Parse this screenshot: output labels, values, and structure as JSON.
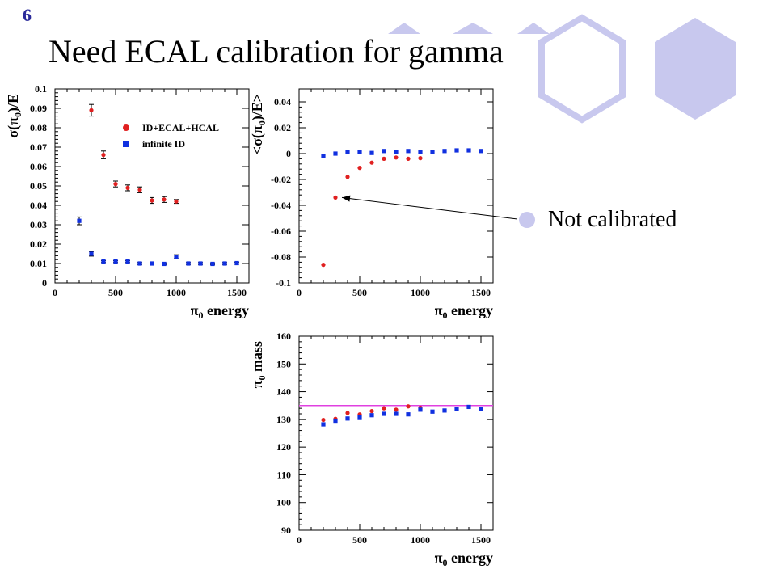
{
  "slide": {
    "number": "6",
    "title": "Need ECAL calibration for gamma",
    "callout": "Not calibrated"
  },
  "colors": {
    "red": "#e02020",
    "blue": "#1030e0",
    "magenta": "#e040e0",
    "deco": "#c8c8ee"
  },
  "chart_data": [
    {
      "type": "scatter",
      "xlabel": "π0 energy",
      "ylabel": "σ(π0)/E",
      "xlim": [
        0,
        1600
      ],
      "ylim": [
        0,
        0.1
      ],
      "xticks": [
        0,
        500,
        1000,
        1500
      ],
      "yticks": [
        0,
        0.01,
        0.02,
        0.03,
        0.04,
        0.05,
        0.06,
        0.07,
        0.08,
        0.09,
        0.1
      ],
      "ytick_labels": [
        "0",
        "0.01",
        "0.02",
        "0.03",
        "0.04",
        "0.05",
        "0.06",
        "0.07",
        "0.08",
        "0.09",
        "0.1"
      ],
      "legend_position": "top-right",
      "series": [
        {
          "name": "ID+ECAL+HCAL",
          "marker": "circle",
          "color": "#e02020",
          "x": [
            300,
            400,
            500,
            600,
            700,
            800,
            900,
            1000
          ],
          "y": [
            0.089,
            0.066,
            0.051,
            0.049,
            0.048,
            0.0425,
            0.043,
            0.042
          ],
          "err": [
            0.003,
            0.002,
            0.0015,
            0.0015,
            0.0015,
            0.0015,
            0.0015,
            0.001
          ]
        },
        {
          "name": "infinite ID",
          "marker": "square",
          "color": "#1030e0",
          "x": [
            200,
            300,
            400,
            500,
            600,
            700,
            800,
            900,
            1000,
            1100,
            1200,
            1300,
            1400,
            1500
          ],
          "y": [
            0.032,
            0.015,
            0.011,
            0.011,
            0.011,
            0.01,
            0.01,
            0.0098,
            0.0135,
            0.01,
            0.01,
            0.0098,
            0.01,
            0.0102
          ],
          "err": [
            0.002,
            0.0012,
            0.0005,
            0.0005,
            0.0005,
            0.0005,
            0.0005,
            0.0005,
            0.001,
            0.0005,
            0.0005,
            0.0005,
            0.0005,
            0.0005
          ]
        }
      ]
    },
    {
      "type": "scatter",
      "xlabel": "π0 energy",
      "ylabel": "<σ(π0)/E>",
      "xlim": [
        0,
        1600
      ],
      "ylim": [
        -0.1,
        0.05
      ],
      "xticks": [
        0,
        500,
        1000,
        1500
      ],
      "yticks": [
        -0.1,
        -0.08,
        -0.06,
        -0.04,
        -0.02,
        0,
        0.02,
        0.04
      ],
      "ytick_labels": [
        "-0.1",
        "-0.08",
        "-0.06",
        "-0.04",
        "-0.02",
        "0",
        "0.02",
        "0.04"
      ],
      "series": [
        {
          "marker": "circle",
          "color": "#e02020",
          "x": [
            200,
            300,
            400,
            500,
            600,
            700,
            800,
            900,
            1000
          ],
          "y": [
            -0.086,
            -0.034,
            -0.018,
            -0.011,
            -0.007,
            -0.004,
            -0.003,
            -0.004,
            -0.0035
          ]
        },
        {
          "marker": "square",
          "color": "#1030e0",
          "x": [
            200,
            300,
            400,
            500,
            600,
            700,
            800,
            900,
            1000,
            1100,
            1200,
            1300,
            1400,
            1500
          ],
          "y": [
            -0.002,
            0,
            0.001,
            0.001,
            0.0005,
            0.002,
            0.0015,
            0.002,
            0.0015,
            0.001,
            0.002,
            0.0025,
            0.0025,
            0.002
          ]
        }
      ]
    },
    {
      "type": "scatter",
      "xlabel": "π0 energy",
      "ylabel": "π0 mass",
      "xlim": [
        0,
        1600
      ],
      "ylim": [
        90,
        160
      ],
      "xticks": [
        0,
        500,
        1000,
        1500
      ],
      "yticks": [
        90,
        100,
        110,
        120,
        130,
        140,
        150,
        160
      ],
      "ytick_labels": [
        "90",
        "100",
        "110",
        "120",
        "130",
        "140",
        "150",
        "160"
      ],
      "reference_line": {
        "y": 135,
        "color": "#e040e0"
      },
      "series": [
        {
          "marker": "circle",
          "color": "#e02020",
          "x": [
            200,
            300,
            400,
            500,
            600,
            700,
            800,
            900,
            1000
          ],
          "y": [
            129.8,
            130.2,
            132.3,
            131.8,
            133,
            134,
            133.5,
            134.7,
            134.2
          ]
        },
        {
          "marker": "square",
          "color": "#1030e0",
          "x": [
            200,
            300,
            400,
            500,
            600,
            700,
            800,
            900,
            1000,
            1100,
            1200,
            1300,
            1400,
            1500
          ],
          "y": [
            128.2,
            129.5,
            130.3,
            130.8,
            131.5,
            132,
            132,
            131.8,
            133.5,
            132.8,
            133.2,
            133.8,
            134.5,
            133.8
          ]
        }
      ]
    }
  ]
}
